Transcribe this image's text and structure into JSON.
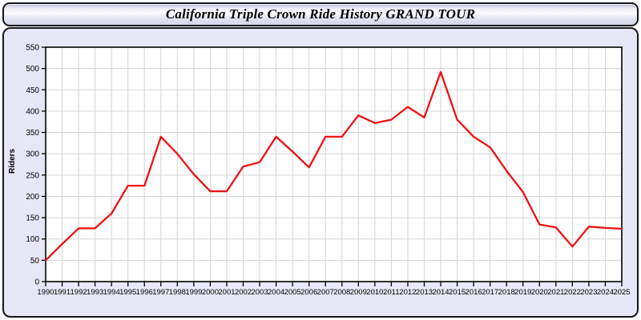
{
  "header": {
    "title": "California Triple Crown Ride History GRAND TOUR"
  },
  "chart_data": {
    "type": "line",
    "title": "California Triple Crown Ride History GRAND TOUR",
    "xlabel": "",
    "ylabel": "Riders",
    "x": [
      1990,
      1991,
      1992,
      1993,
      1994,
      1995,
      1996,
      1997,
      1998,
      1999,
      2000,
      2001,
      2002,
      2003,
      2004,
      2005,
      2006,
      2007,
      2008,
      2009,
      2010,
      2011,
      2012,
      2013,
      2014,
      2015,
      2016,
      2017,
      2018,
      2019,
      2020,
      2021,
      2022,
      2023,
      2024,
      2025
    ],
    "series": [
      {
        "name": "Riders",
        "values": [
          50,
          88,
          125,
          125,
          160,
          225,
          225,
          340,
          300,
          252,
          212,
          212,
          270,
          280,
          340,
          305,
          268,
          340,
          340,
          390,
          372,
          380,
          410,
          385,
          492,
          380,
          340,
          315,
          260,
          210,
          134,
          127,
          82,
          129,
          126,
          124
        ]
      }
    ],
    "ylim": [
      0,
      550
    ],
    "ytick_step": 50,
    "grid": true,
    "legend": "none"
  },
  "colors": {
    "line": "#ee1111",
    "grid": "#d5d5d5",
    "axis": "#000000",
    "plot_bg": "#ffffff",
    "panel_bg": "#e7e7f7",
    "tick_text": "#000000"
  }
}
